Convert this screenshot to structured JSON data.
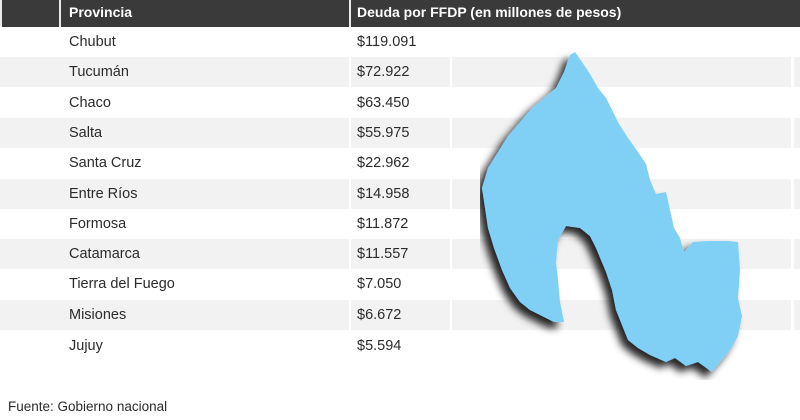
{
  "table": {
    "headers": [
      "Provincia",
      "Deuda por FFDP (en millones de pesos)"
    ],
    "rows": [
      {
        "provincia": "Chubut",
        "deuda": "$119.091"
      },
      {
        "provincia": "Tucumán",
        "deuda": "$72.922"
      },
      {
        "provincia": "Chaco",
        "deuda": "$63.450"
      },
      {
        "provincia": "Salta",
        "deuda": "$55.975"
      },
      {
        "provincia": "Santa Cruz",
        "deuda": "$22.962"
      },
      {
        "provincia": "Entre Ríos",
        "deuda": "$14.958"
      },
      {
        "provincia": "Formosa",
        "deuda": "$11.872"
      },
      {
        "provincia": "Catamarca",
        "deuda": "$11.557"
      },
      {
        "provincia": "Tierra del Fuego",
        "deuda": "$7.050"
      },
      {
        "provincia": "Misiones",
        "deuda": "$6.672"
      },
      {
        "provincia": "Jujuy",
        "deuda": "$5.594"
      }
    ]
  },
  "source": "Fuente: Gobierno nacional",
  "map": {
    "icon": "jujuy-province-map-icon",
    "fill_color": "#80D0F6",
    "shadow_color": "#000000"
  },
  "colors": {
    "header_bg": "#3a3a3a",
    "row_alt_bg": "#f2f2f2",
    "text": "#2b2b2b"
  }
}
